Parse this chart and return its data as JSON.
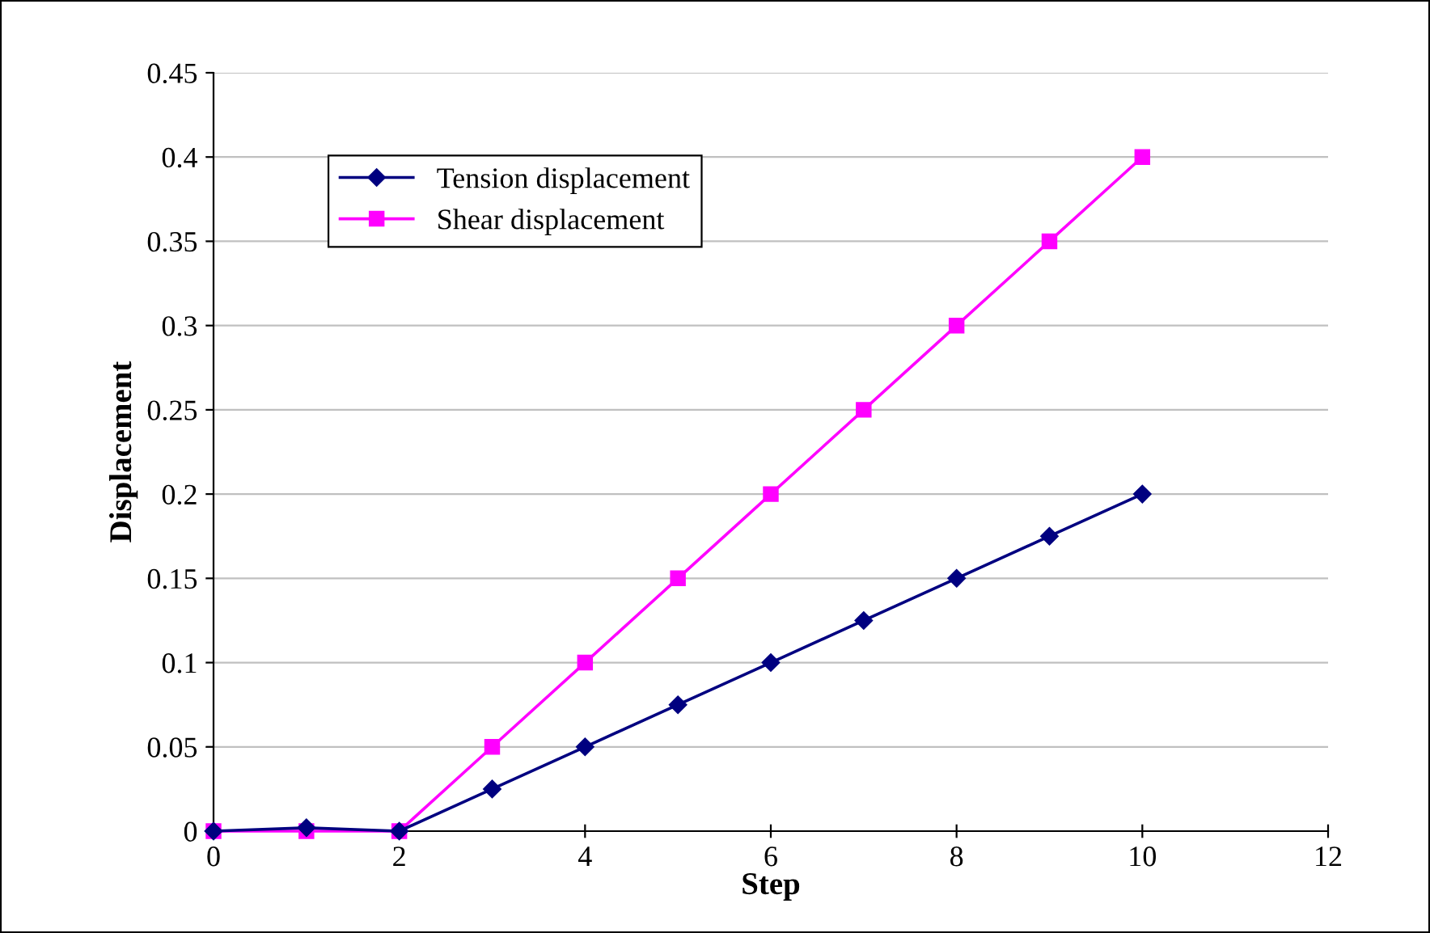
{
  "chart_data": {
    "type": "line",
    "xlabel": "Step",
    "ylabel": "Displacement",
    "x": [
      0,
      1,
      2,
      3,
      4,
      5,
      6,
      7,
      8,
      9,
      10
    ],
    "series": [
      {
        "name": "Tension displacement",
        "color": "#000080",
        "marker": "diamond",
        "values": [
          0,
          0.002,
          0,
          0.025,
          0.05,
          0.075,
          0.1,
          0.125,
          0.15,
          0.175,
          0.2
        ]
      },
      {
        "name": "Shear displacement",
        "color": "#ff00ff",
        "marker": "square",
        "values": [
          0,
          0,
          0,
          0.05,
          0.1,
          0.15,
          0.2,
          0.25,
          0.3,
          0.35,
          0.4
        ]
      }
    ],
    "xlim": [
      0,
      12
    ],
    "xticks": [
      0,
      2,
      4,
      6,
      8,
      10,
      12
    ],
    "ylim": [
      0,
      0.45
    ],
    "yticks": [
      0,
      0.05,
      0.1,
      0.15,
      0.2,
      0.25,
      0.3,
      0.35,
      0.4,
      0.45
    ],
    "grid": "y",
    "legend": "top left"
  }
}
